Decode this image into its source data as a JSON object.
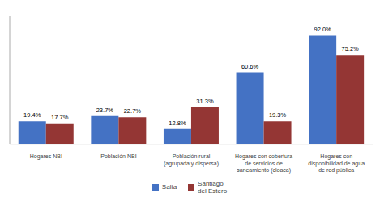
{
  "chart_data": {
    "type": "bar",
    "categories": [
      "Hogares NBI",
      "Población NBI",
      "Población rural\n(agrupada y dispersa)",
      "Hogares con cobertura\nde servicios de\nsaneamiento (cloaca)",
      "Hogares con\ndisponibilidad de agua\nde red pública"
    ],
    "series": [
      {
        "name": "Salta",
        "color": "#4472C4",
        "values": [
          19.4,
          23.7,
          12.8,
          60.6,
          92.0
        ],
        "value_labels": [
          "19.4%",
          "23.7%",
          "12.8%",
          "60.6%",
          "92.0%"
        ]
      },
      {
        "name": "Santiago\ndel Estero",
        "color": "#943634",
        "values": [
          17.7,
          22.7,
          31.3,
          19.3,
          75.2
        ],
        "value_labels": [
          "17.7%",
          "22.7%",
          "31.3%",
          "19.3%",
          "75.2%"
        ]
      }
    ],
    "ylim": [
      0,
      108
    ],
    "data_labels": true,
    "tick_labels": "x",
    "legend": "bottom"
  }
}
